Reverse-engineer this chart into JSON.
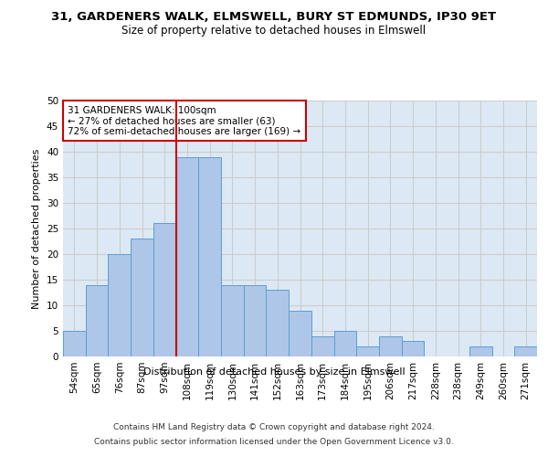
{
  "title_line1": "31, GARDENERS WALK, ELMSWELL, BURY ST EDMUNDS, IP30 9ET",
  "title_line2": "Size of property relative to detached houses in Elmswell",
  "xlabel": "Distribution of detached houses by size in Elmswell",
  "ylabel": "Number of detached properties",
  "bar_labels": [
    "54sqm",
    "65sqm",
    "76sqm",
    "87sqm",
    "97sqm",
    "108sqm",
    "119sqm",
    "130sqm",
    "141sqm",
    "152sqm",
    "163sqm",
    "173sqm",
    "184sqm",
    "195sqm",
    "206sqm",
    "217sqm",
    "228sqm",
    "238sqm",
    "249sqm",
    "260sqm",
    "271sqm"
  ],
  "bar_values": [
    5,
    14,
    20,
    23,
    26,
    39,
    39,
    14,
    14,
    13,
    9,
    4,
    5,
    2,
    4,
    3,
    0,
    0,
    2,
    0,
    2
  ],
  "bar_color": "#aec6e8",
  "bar_edge_color": "#5a9fd4",
  "red_line_x": 4.5,
  "annotation_text": "31 GARDENERS WALK: 100sqm\n← 27% of detached houses are smaller (63)\n72% of semi-detached houses are larger (169) →",
  "annotation_box_color": "#ffffff",
  "annotation_box_edge": "#cc0000",
  "red_line_color": "#cc0000",
  "grid_color": "#cccccc",
  "background_color": "#dce9f5",
  "ylim": [
    0,
    50
  ],
  "yticks": [
    0,
    5,
    10,
    15,
    20,
    25,
    30,
    35,
    40,
    45,
    50
  ],
  "footer_line1": "Contains HM Land Registry data © Crown copyright and database right 2024.",
  "footer_line2": "Contains public sector information licensed under the Open Government Licence v3.0.",
  "title_fontsize": 9.5,
  "subtitle_fontsize": 8.5,
  "axis_label_fontsize": 8,
  "tick_fontsize": 7.5
}
